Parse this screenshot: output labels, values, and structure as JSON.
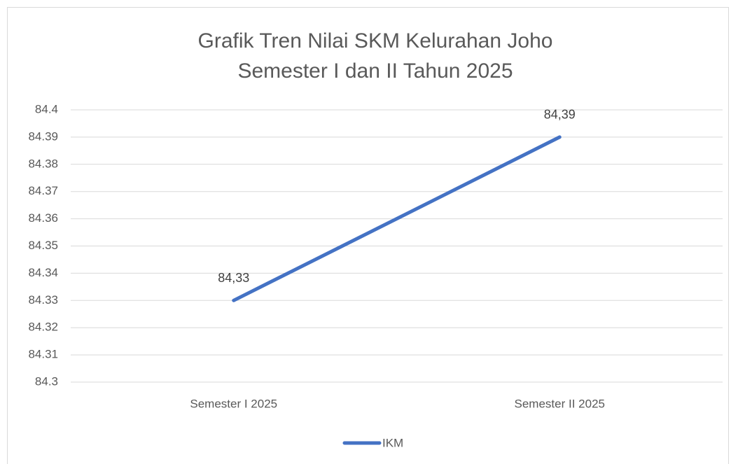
{
  "chart_data": {
    "type": "line",
    "title": [
      "Grafik Tren Nilai SKM Kelurahan Joho",
      "Semester I dan II Tahun 2025"
    ],
    "categories": [
      "Semester I 2025",
      "Semester II 2025"
    ],
    "series": [
      {
        "name": "IKM",
        "color": "#4472c4",
        "values": [
          84.33,
          84.39
        ],
        "value_labels": [
          "84,33",
          "84,39"
        ]
      }
    ],
    "ylim": [
      84.3,
      84.4
    ],
    "yticks": [
      84.3,
      84.31,
      84.32,
      84.33,
      84.34,
      84.35,
      84.36,
      84.37,
      84.38,
      84.39,
      84.4
    ],
    "grid": true,
    "legend": "bottom"
  }
}
